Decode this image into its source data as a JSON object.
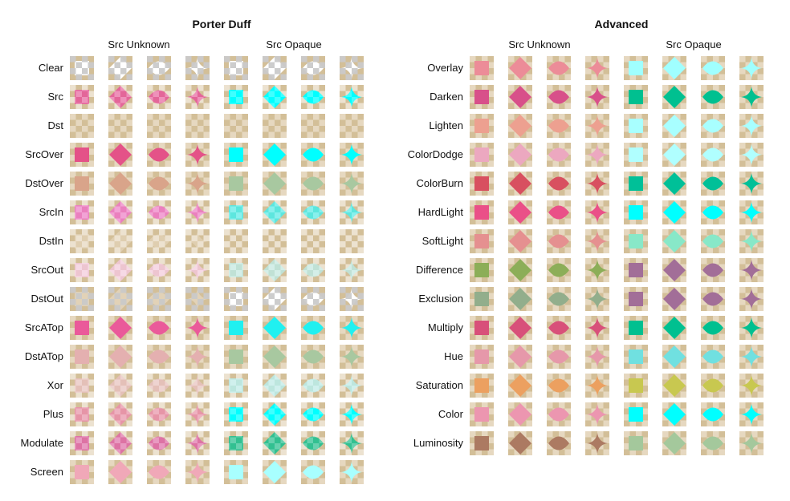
{
  "groups": [
    {
      "title": "Porter Duff",
      "sub_unknown": "Src Unknown",
      "sub_opaque": "Src Opaque",
      "rows": [
        {
          "label": "Clear",
          "unknown_color": "#ffffff",
          "unknown_alpha": 1.0,
          "opaque_color": "#ffffff",
          "opaque_alpha": 1.0,
          "mode": "clear"
        },
        {
          "label": "Src",
          "unknown_color": "#e8489a",
          "unknown_alpha": 0.75,
          "opaque_color": "#00ffff",
          "opaque_alpha": 1.0,
          "mode": "src"
        },
        {
          "label": "Dst",
          "unknown_color": "#d8c09a",
          "unknown_alpha": 0.0,
          "opaque_color": "#d8c09a",
          "opaque_alpha": 0.0,
          "mode": "dst"
        },
        {
          "label": "SrcOver",
          "unknown_color": "#e45288",
          "unknown_alpha": 1.0,
          "opaque_color": "#00ffff",
          "opaque_alpha": 1.0,
          "mode": "over"
        },
        {
          "label": "DstOver",
          "unknown_color": "#d9a48a",
          "unknown_alpha": 1.0,
          "opaque_color": "#a8c8a0",
          "opaque_alpha": 1.0,
          "mode": "over"
        },
        {
          "label": "SrcIn",
          "unknown_color": "#f070c8",
          "unknown_alpha": 0.8,
          "opaque_color": "#40f0f0",
          "opaque_alpha": 0.8,
          "mode": "src"
        },
        {
          "label": "DstIn",
          "unknown_color": "#e8d8c0",
          "unknown_alpha": 0.6,
          "opaque_color": "#d8c09a",
          "opaque_alpha": 0.0,
          "mode": "src"
        },
        {
          "label": "SrcOut",
          "unknown_color": "#f8c8e8",
          "unknown_alpha": 0.7,
          "opaque_color": "#b8f0f0",
          "opaque_alpha": 0.7,
          "mode": "src"
        },
        {
          "label": "DstOut",
          "unknown_color": "#ece0cc",
          "unknown_alpha": 0.6,
          "opaque_color": "#ffffff",
          "opaque_alpha": 1.0,
          "mode": "clear"
        },
        {
          "label": "SrcATop",
          "unknown_color": "#ea5a9a",
          "unknown_alpha": 1.0,
          "opaque_color": "#20f0f0",
          "opaque_alpha": 1.0,
          "mode": "over"
        },
        {
          "label": "DstATop",
          "unknown_color": "#e4b0b0",
          "unknown_alpha": 1.0,
          "opaque_color": "#a8c8a0",
          "opaque_alpha": 1.0,
          "mode": "over"
        },
        {
          "label": "Xor",
          "unknown_color": "#e8c0c0",
          "unknown_alpha": 0.8,
          "opaque_color": "#b8f0f0",
          "opaque_alpha": 0.8,
          "mode": "src"
        },
        {
          "label": "Plus",
          "unknown_color": "#e890a8",
          "unknown_alpha": 0.9,
          "opaque_color": "#00ffff",
          "opaque_alpha": 1.0,
          "mode": "src"
        },
        {
          "label": "Modulate",
          "unknown_color": "#e060a8",
          "unknown_alpha": 0.8,
          "opaque_color": "#20c090",
          "opaque_alpha": 0.9,
          "mode": "src"
        },
        {
          "label": "Screen",
          "unknown_color": "#f0a8b8",
          "unknown_alpha": 1.0,
          "opaque_color": "#a8ffff",
          "opaque_alpha": 1.0,
          "mode": "over"
        }
      ]
    },
    {
      "title": "Advanced",
      "sub_unknown": "Src Unknown",
      "sub_opaque": "Src Opaque",
      "rows": [
        {
          "label": "Overlay",
          "unknown_color": "#ec8c98",
          "unknown_alpha": 1.0,
          "opaque_color": "#a0ffff",
          "opaque_alpha": 1.0,
          "mode": "over"
        },
        {
          "label": "Darken",
          "unknown_color": "#d8508a",
          "unknown_alpha": 1.0,
          "opaque_color": "#00c090",
          "opaque_alpha": 1.0,
          "mode": "over"
        },
        {
          "label": "Lighten",
          "unknown_color": "#eda090",
          "unknown_alpha": 1.0,
          "opaque_color": "#a8ffff",
          "opaque_alpha": 1.0,
          "mode": "over"
        },
        {
          "label": "ColorDodge",
          "unknown_color": "#eca8c0",
          "unknown_alpha": 1.0,
          "opaque_color": "#b0ffff",
          "opaque_alpha": 1.0,
          "mode": "over"
        },
        {
          "label": "ColorBurn",
          "unknown_color": "#d85060",
          "unknown_alpha": 1.0,
          "opaque_color": "#00c098",
          "opaque_alpha": 1.0,
          "mode": "over"
        },
        {
          "label": "HardLight",
          "unknown_color": "#ea5088",
          "unknown_alpha": 1.0,
          "opaque_color": "#00ffff",
          "opaque_alpha": 1.0,
          "mode": "over"
        },
        {
          "label": "SoftLight",
          "unknown_color": "#e59090",
          "unknown_alpha": 1.0,
          "opaque_color": "#88e8c8",
          "opaque_alpha": 1.0,
          "mode": "over"
        },
        {
          "label": "Difference",
          "unknown_color": "#8cae58",
          "unknown_alpha": 1.0,
          "opaque_color": "#a26e98",
          "opaque_alpha": 1.0,
          "mode": "over"
        },
        {
          "label": "Exclusion",
          "unknown_color": "#92ae8c",
          "unknown_alpha": 1.0,
          "opaque_color": "#a26e98",
          "opaque_alpha": 1.0,
          "mode": "over"
        },
        {
          "label": "Multiply",
          "unknown_color": "#d8507a",
          "unknown_alpha": 1.0,
          "opaque_color": "#00c090",
          "opaque_alpha": 1.0,
          "mode": "over"
        },
        {
          "label": "Hue",
          "unknown_color": "#e698aa",
          "unknown_alpha": 1.0,
          "opaque_color": "#70e0e0",
          "opaque_alpha": 1.0,
          "mode": "over"
        },
        {
          "label": "Saturation",
          "unknown_color": "#eca060",
          "unknown_alpha": 1.0,
          "opaque_color": "#c8c850",
          "opaque_alpha": 1.0,
          "mode": "over"
        },
        {
          "label": "Color",
          "unknown_color": "#ec96b0",
          "unknown_alpha": 1.0,
          "opaque_color": "#00ffff",
          "opaque_alpha": 1.0,
          "mode": "over"
        },
        {
          "label": "Luminosity",
          "unknown_color": "#ac7a62",
          "unknown_alpha": 1.0,
          "opaque_color": "#a4c89c",
          "opaque_alpha": 1.0,
          "mode": "over"
        }
      ]
    }
  ],
  "shapes": [
    "square",
    "diamond",
    "leaf",
    "star"
  ],
  "checker": {
    "dark": "#d3bf98",
    "light": "#e6d8c0"
  }
}
